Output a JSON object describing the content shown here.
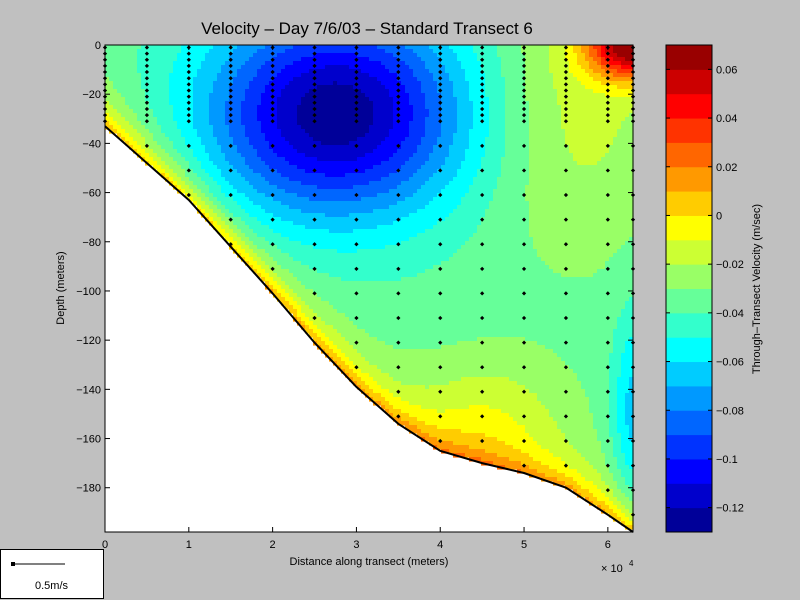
{
  "chart_data": {
    "type": "heatmap",
    "title": "Velocity – Day 7/6/03 – Standard Transect 6",
    "xlabel": "Distance along transect (meters)",
    "ylabel": "Depth (meters)",
    "x_exponent_label": "× 10",
    "x_exponent": "4",
    "x_ticks": [
      0,
      1,
      2,
      3,
      4,
      5,
      6
    ],
    "y_ticks": [
      0,
      -20,
      -40,
      -60,
      -80,
      -100,
      -120,
      -140,
      -160,
      -180
    ],
    "xlim": [
      0,
      6.3
    ],
    "ylim": [
      -198,
      0
    ],
    "colorbar": {
      "label": "Through–Transect Velocity (m/sec)",
      "range": [
        -0.13,
        0.07
      ],
      "levels": 20,
      "ticks": [
        0.06,
        0.04,
        0.02,
        0,
        -0.02,
        -0.04,
        -0.06,
        -0.08,
        -0.1,
        -0.12
      ],
      "tick_labels": [
        "0.06",
        "0.04",
        "0.02",
        "0",
        "−0.02",
        "−0.04",
        "−0.06",
        "−0.08",
        "−0.1",
        "−0.12"
      ]
    },
    "bottom_profile": [
      [
        0,
        -33
      ],
      [
        0.5,
        -48
      ],
      [
        1,
        -63
      ],
      [
        1.5,
        -82
      ],
      [
        2,
        -101
      ],
      [
        2.5,
        -121
      ],
      [
        3,
        -139
      ],
      [
        3.5,
        -154
      ],
      [
        4,
        -165
      ],
      [
        4.5,
        -170
      ],
      [
        5,
        -174
      ],
      [
        5.5,
        -180
      ],
      [
        6,
        -191
      ],
      [
        6.3,
        -198
      ]
    ],
    "velocity_core": {
      "center_x": 2.75,
      "center_depth": -28,
      "min_velocity": -0.128
    },
    "surface_maximum": {
      "x": 6.3,
      "depth": 0,
      "max_velocity": 0.065
    },
    "station_x": [
      0,
      0.5,
      1,
      1.5,
      2,
      2.5,
      3,
      3.5,
      4,
      4.5,
      5,
      5.5,
      6,
      6.3
    ],
    "scale_label": "0.5m/s"
  }
}
